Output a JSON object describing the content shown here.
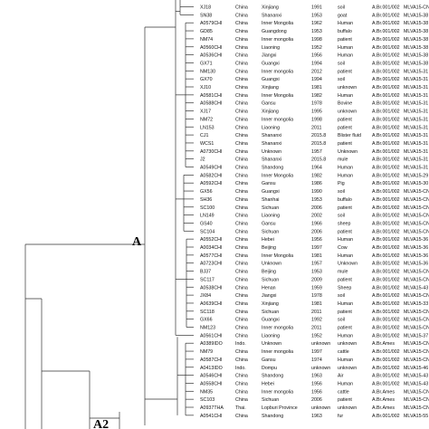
{
  "tree": {
    "clade_labels": {
      "A": "A",
      "A2": "A2"
    },
    "columns": [
      "strain",
      "country",
      "region",
      "year",
      "source",
      "lineage",
      "mlva_type"
    ],
    "rows": [
      {
        "strain": "XJ18",
        "country": "China",
        "region": "Xinjiang",
        "year": "1991",
        "source": "soil",
        "lineage": "A.Br.001/002",
        "mlva_type": "MLVA15-CN319"
      },
      {
        "strain": "SN38",
        "country": "China",
        "region": "Shananxi",
        "year": "1953",
        "source": "goat",
        "lineage": "A.Br.001/002",
        "mlva_type": "MLVA15-38"
      },
      {
        "strain": "A0579CHI",
        "country": "China",
        "region": "Inner Mongolia",
        "year": "1962",
        "source": "Human",
        "lineage": "A.Br.001/002",
        "mlva_type": "MLVA15-38"
      },
      {
        "strain": "GD85",
        "country": "China",
        "region": "Guangdong",
        "year": "1953",
        "source": "buffalo",
        "lineage": "A.Br.001/002",
        "mlva_type": "MLVA15-38"
      },
      {
        "strain": "NM74",
        "country": "China",
        "region": "Inner mongolia",
        "year": "1998",
        "source": "patient",
        "lineage": "A.Br.001/002",
        "mlva_type": "MLVA15-38"
      },
      {
        "strain": "A0560CHI",
        "country": "China",
        "region": "Liaoning",
        "year": "1952",
        "source": "Human",
        "lineage": "A.Br.001/002",
        "mlva_type": "MLVA15-38"
      },
      {
        "strain": "A0536CHI",
        "country": "China",
        "region": "Jiangxi",
        "year": "1956",
        "source": "Human",
        "lineage": "A.Br.001/002",
        "mlva_type": "MLVA15-38"
      },
      {
        "strain": "GX71",
        "country": "China",
        "region": "Guangxi",
        "year": "1994",
        "source": "soil",
        "lineage": "A.Br.001/002",
        "mlva_type": "MLVA15-38"
      },
      {
        "strain": "NM130",
        "country": "China",
        "region": "Inner mongolia",
        "year": "2012",
        "source": "patient",
        "lineage": "A.Br.001/002",
        "mlva_type": "MLVA15-31"
      },
      {
        "strain": "GX70",
        "country": "China",
        "region": "Guangxi",
        "year": "1994",
        "source": "soil",
        "lineage": "A.Br.001/002",
        "mlva_type": "MLVA15-31"
      },
      {
        "strain": "XJ10",
        "country": "China",
        "region": "Xinjiang",
        "year": "1981",
        "source": "unknown",
        "lineage": "A.Br.001/002",
        "mlva_type": "MLVA15-31"
      },
      {
        "strain": "A0581CHI",
        "country": "China",
        "region": "Inner Mongolia",
        "year": "1982",
        "source": "Human",
        "lineage": "A.Br.001/002",
        "mlva_type": "MLVA15-31"
      },
      {
        "strain": "A0588CHI",
        "country": "China",
        "region": "Gansu",
        "year": "1978",
        "source": "Bovine",
        "lineage": "A.Br.001/002",
        "mlva_type": "MLVA15-31"
      },
      {
        "strain": "XJ17",
        "country": "China",
        "region": "Xinjiang",
        "year": "1995",
        "source": "unknown",
        "lineage": "A.Br.001/002",
        "mlva_type": "MLVA15-31"
      },
      {
        "strain": "NM72",
        "country": "China",
        "region": "Inner mongolia",
        "year": "1998",
        "source": "patient",
        "lineage": "A.Br.001/002",
        "mlva_type": "MLVA15-31"
      },
      {
        "strain": "LN153",
        "country": "China",
        "region": "Liaoning",
        "year": "2011",
        "source": "patient",
        "lineage": "A.Br.001/002",
        "mlva_type": "MLVA15-31"
      },
      {
        "strain": "CJ1",
        "country": "China",
        "region": "Shananxi",
        "year": "2015.8",
        "source": "Blister fluid",
        "lineage": "A.Br.001/002",
        "mlva_type": "MLVA15-31"
      },
      {
        "strain": "WCS1",
        "country": "China",
        "region": "Shananxi",
        "year": "2015.8",
        "source": "patient",
        "lineage": "A.Br.001/002",
        "mlva_type": "MLVA15-31"
      },
      {
        "strain": "A0730CHI",
        "country": "China",
        "region": "Unknown",
        "year": "1957",
        "source": "Unknown",
        "lineage": "A.Br.001/002",
        "mlva_type": "MLVA15-31"
      },
      {
        "strain": "J2",
        "country": "China",
        "region": "Shananxi",
        "year": "2015.8",
        "source": "mule",
        "lineage": "A.Br.001/002",
        "mlva_type": "MLVA15-31"
      },
      {
        "strain": "A0549CHI",
        "country": "China",
        "region": "Shandong",
        "year": "1964",
        "source": "Human",
        "lineage": "A.Br.001/002",
        "mlva_type": "MLVA15-31"
      },
      {
        "strain": "A0582CHI",
        "country": "China",
        "region": "Inner Mongolia",
        "year": "1982",
        "source": "Human",
        "lineage": "A.Br.001/002",
        "mlva_type": "MLVA15-29"
      },
      {
        "strain": "A0592CHI",
        "country": "China",
        "region": "Gansu",
        "year": "1986",
        "source": "Pig",
        "lineage": "A.Br.001/002",
        "mlva_type": "MLVA15-30"
      },
      {
        "strain": "GX56",
        "country": "China",
        "region": "Guangxi",
        "year": "1990",
        "source": "soil",
        "lineage": "A.Br.001/002",
        "mlva_type": "MLVA15-CN310"
      },
      {
        "strain": "SH36",
        "country": "China",
        "region": "Shanhai",
        "year": "1953",
        "source": "buffalo",
        "lineage": "A.Br.001/002",
        "mlva_type": "MLVA15-CN314"
      },
      {
        "strain": "SC100",
        "country": "China",
        "region": "Sichuan",
        "year": "2006",
        "source": "patient",
        "lineage": "A.Br.001/002",
        "mlva_type": "MLVA15-CN313"
      },
      {
        "strain": "LN149",
        "country": "China",
        "region": "Liaoning",
        "year": "2002",
        "source": "soil",
        "lineage": "A.Br.001/002",
        "mlva_type": "MLVA15-CN308"
      },
      {
        "strain": "GS40",
        "country": "China",
        "region": "Gansu",
        "year": "1966",
        "source": "sheep",
        "lineage": "A.Br.001/002",
        "mlva_type": "MLVA15-CN308"
      },
      {
        "strain": "SC104",
        "country": "China",
        "region": "Sichuan",
        "year": "2006",
        "source": "patient",
        "lineage": "A.Br.001/002",
        "mlva_type": "MLVA15-CN312"
      },
      {
        "strain": "A0552CHI",
        "country": "China",
        "region": "Hebei",
        "year": "1956",
        "source": "Human",
        "lineage": "A.Br.001/002",
        "mlva_type": "MLVA15-36"
      },
      {
        "strain": "A0034CHI",
        "country": "China",
        "region": "Beijing",
        "year": "1997",
        "source": "Cow",
        "lineage": "A.Br.001/002",
        "mlva_type": "MLVA15-36"
      },
      {
        "strain": "A0577CHI",
        "country": "China",
        "region": "Inner Mongolia",
        "year": "1981",
        "source": "Human",
        "lineage": "A.Br.001/002",
        "mlva_type": "MLVA15-36"
      },
      {
        "strain": "A0723CHI",
        "country": "China",
        "region": "Unknown",
        "year": "1957",
        "source": "Unknown",
        "lineage": "A.Br.001/002",
        "mlva_type": "MLVA15-36"
      },
      {
        "strain": "BJ37",
        "country": "China",
        "region": "Beijing",
        "year": "1953",
        "source": "mule",
        "lineage": "A.Br.001/002",
        "mlva_type": "MLVA15-CN309"
      },
      {
        "strain": "SC117",
        "country": "China",
        "region": "Sichuan",
        "year": "2009",
        "source": "patient",
        "lineage": "A.Br.001/002",
        "mlva_type": "MLVA15-CN333"
      },
      {
        "strain": "A0538CHI",
        "country": "China",
        "region": "Henan",
        "year": "1959",
        "source": "Sheep",
        "lineage": "A.Br.001/002",
        "mlva_type": "MLVA15-43"
      },
      {
        "strain": "JX84",
        "country": "China",
        "region": "Jiangxi",
        "year": "1978",
        "source": "soil",
        "lineage": "A.Br.001/002",
        "mlva_type": "MLVA15-CN317"
      },
      {
        "strain": "A0639CHI",
        "country": "China",
        "region": "Xinjiang",
        "year": "1981",
        "source": "Human",
        "lineage": "A.Br.001/002",
        "mlva_type": "MLVA15-33"
      },
      {
        "strain": "SC118",
        "country": "China",
        "region": "Sichuan",
        "year": "2011",
        "source": "patient",
        "lineage": "A.Br.001/002",
        "mlva_type": "MLVA15-CN316"
      },
      {
        "strain": "GX66",
        "country": "China",
        "region": "Guangxi",
        "year": "1992",
        "source": "soil",
        "lineage": "A.Br.001/002",
        "mlva_type": "MLVA15-CN327"
      },
      {
        "strain": "NM123",
        "country": "China",
        "region": "Inner mongolia",
        "year": "2011",
        "source": "patient",
        "lineage": "A.Br.001/002",
        "mlva_type": "MLVA15-CN328"
      },
      {
        "strain": "A0561CHI",
        "country": "China",
        "region": "Liaoning",
        "year": "1952",
        "source": "Human",
        "lineage": "A.Br.001/002",
        "mlva_type": "MLVA15-37"
      },
      {
        "strain": "A0389IDO",
        "country": "Indo.",
        "region": "Unknown",
        "year": "unknown",
        "source": "unknown",
        "lineage": "A.Br.Ames",
        "mlva_type": "MLVA15-CN301"
      },
      {
        "strain": "NM79",
        "country": "China",
        "region": "Inner mongolia",
        "year": "1997",
        "source": "cattle",
        "lineage": "A.Br.001/002",
        "mlva_type": "MLVA15-CN307"
      },
      {
        "strain": "A0587CHI",
        "country": "China",
        "region": "Gansu",
        "year": "1974",
        "source": "Human",
        "lineage": "A.Br.001/002",
        "mlva_type": "MLVA15-CN328"
      },
      {
        "strain": "A0413IDO",
        "country": "Indo.",
        "region": "Dompu",
        "year": "unknown",
        "source": "unknown",
        "lineage": "A.Br.001/002",
        "mlva_type": "MLVA15-46"
      },
      {
        "strain": "A0546CHI",
        "country": "China",
        "region": "Shandong",
        "year": "1963",
        "source": "Air",
        "lineage": "A.Br.001/002",
        "mlva_type": "MLVA15-43"
      },
      {
        "strain": "A0558CHI",
        "country": "China",
        "region": "Hebei",
        "year": "1956",
        "source": "Human",
        "lineage": "A.Br.001/002",
        "mlva_type": "MLVA15-43"
      },
      {
        "strain": "NM35",
        "country": "China",
        "region": "Inner mongolia",
        "year": "1956",
        "source": "cattle",
        "lineage": "A.Br.Ames",
        "mlva_type": "MLVA15-CN301"
      },
      {
        "strain": "SC103",
        "country": "China",
        "region": "Sichuan",
        "year": "2006",
        "source": "patient",
        "lineage": "A.Br.Ames",
        "mlva_type": "MLVA15-CN302"
      },
      {
        "strain": "A0937THA",
        "country": "Thai.",
        "region": "Lopburi Province",
        "year": "unknown",
        "source": "unknown",
        "lineage": "A.Br.Ames",
        "mlva_type": "MLVA15-CN301"
      },
      {
        "strain": "A0541CHI",
        "country": "China",
        "region": "Shandong",
        "year": "1963",
        "source": "fur",
        "lineage": "A.Br.001/002",
        "mlva_type": "MLVA15-55"
      }
    ]
  }
}
